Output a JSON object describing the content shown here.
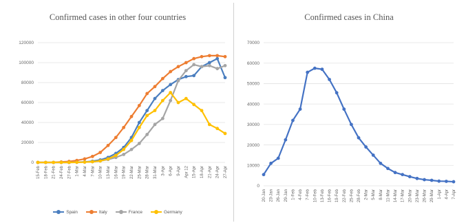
{
  "chart_data": [
    {
      "type": "line",
      "title": "Confirmed cases in other four countries",
      "xlabel": "",
      "ylabel": "",
      "ylim": [
        0,
        120000
      ],
      "y_ticks": [
        "0",
        "20000",
        "40000",
        "60000",
        "80000",
        "100000",
        "120000"
      ],
      "y_tick_values": [
        0,
        20000,
        40000,
        60000,
        80000,
        100000,
        120000
      ],
      "grid": true,
      "legend": "bottom",
      "categories": [
        "15-Feb",
        "18-Feb",
        "21-Feb",
        "24-Feb",
        "27-Feb",
        "1-Mar",
        "4-Mar",
        "7-Mar",
        "10-Mar",
        "13-Mar",
        "16-Mar",
        "19-Mar",
        "22-Mar",
        "25-Mar",
        "28-Mar",
        "31-Mar",
        "3-Apr",
        "6-Apr",
        "9-Apr",
        "Apr 12",
        "15-Apr",
        "18-Apr",
        "21-Apr",
        "24-Apr",
        "27-Apr"
      ],
      "series": [
        {
          "name": "Spain",
          "color": "#4a7ebf",
          "values": [
            0,
            0,
            0,
            0,
            0,
            200,
            500,
            1200,
            2500,
            5000,
            9000,
            15000,
            25000,
            40000,
            52000,
            64000,
            72000,
            78000,
            83000,
            86000,
            87000,
            96000,
            100000,
            104000,
            85000
          ]
        },
        {
          "name": "Italy",
          "color": "#ed7d31",
          "values": [
            0,
            0,
            0,
            500,
            1000,
            2000,
            3500,
            6000,
            10000,
            17000,
            25000,
            35000,
            46000,
            57000,
            69000,
            76000,
            84000,
            91000,
            96000,
            100000,
            104000,
            106000,
            107000,
            107000,
            106000
          ]
        },
        {
          "name": "France",
          "color": "#a5a5a5",
          "values": [
            0,
            0,
            0,
            0,
            0,
            100,
            300,
            700,
            1500,
            3000,
            5000,
            8000,
            13000,
            19000,
            28000,
            38000,
            44000,
            62000,
            82000,
            92000,
            98000,
            96000,
            97000,
            94000,
            97000
          ]
        },
        {
          "name": "Germany",
          "color": "#ffc000",
          "values": [
            0,
            0,
            0,
            0,
            0,
            100,
            300,
            700,
            1500,
            3500,
            7000,
            13000,
            22000,
            35000,
            47000,
            52000,
            62000,
            70000,
            60000,
            64000,
            58000,
            52000,
            38000,
            34000,
            29000
          ]
        }
      ]
    },
    {
      "type": "line",
      "title": "Confirmed cases in China",
      "xlabel": "",
      "ylabel": "",
      "ylim": [
        0,
        70000
      ],
      "y_ticks": [
        "0",
        "10000",
        "20000",
        "30000",
        "40000",
        "50000",
        "60000",
        "70000"
      ],
      "y_tick_values": [
        0,
        10000,
        20000,
        30000,
        40000,
        50000,
        60000,
        70000
      ],
      "grid": true,
      "categories": [
        "20-Jan",
        "23-Jan",
        "26-Jan",
        "29-Jan",
        "1-Feb",
        "4-Feb",
        "7-Feb",
        "10-Feb",
        "13-Feb",
        "16-Feb",
        "19-Feb",
        "22-Feb",
        "25-Feb",
        "28-Feb",
        "2-Mar",
        "5-Mar",
        "8-Mar",
        "11-Mar",
        "14-Mar",
        "17-Mar",
        "20-Mar",
        "23-Mar",
        "26-Mar",
        "29-Mar",
        "1-Apr",
        "4-Apr",
        "7-Apr"
      ],
      "series": [
        {
          "name": "",
          "color": "#4472c4",
          "values": [
            5500,
            11000,
            13500,
            22500,
            32000,
            37500,
            55500,
            57500,
            57000,
            52000,
            45500,
            37500,
            30000,
            23500,
            19000,
            15000,
            11000,
            8500,
            6500,
            5500,
            4500,
            3600,
            3000,
            2700,
            2300,
            2200,
            2000
          ]
        }
      ]
    }
  ]
}
